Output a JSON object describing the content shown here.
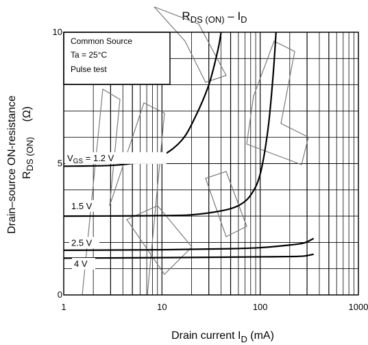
{
  "chart_data": {
    "type": "line",
    "title": {
      "main": "R",
      "main_sub": "DS (ON)",
      "sep": " – I",
      "sep_sub": "D"
    },
    "xlabel": {
      "pre": "Drain current   I",
      "sub": "D",
      "post": "   (mA)"
    },
    "ylabel": {
      "line1": "Drain–source ON-resistance",
      "line2_main": "R",
      "line2_sub": "DS (ON)",
      "line2_unit": "(Ω)"
    },
    "x_scale": "log",
    "xlim": [
      1,
      1000
    ],
    "ylim": [
      0,
      10
    ],
    "x_ticks": [
      {
        "value": 1,
        "label": "1"
      },
      {
        "value": 10,
        "label": "10"
      },
      {
        "value": 100,
        "label": "100"
      },
      {
        "value": 1000,
        "label": "1000"
      }
    ],
    "y_ticks": [
      {
        "value": 0,
        "label": "0"
      },
      {
        "value": 5,
        "label": "5"
      },
      {
        "value": 10,
        "label": "10"
      }
    ],
    "grid": true,
    "conditions": [
      "Common Source",
      "Ta = 25°C",
      "Pulse test"
    ],
    "series": [
      {
        "label_main": "V",
        "label_sub": "GS",
        "label_post": " = 1.2 V",
        "points": [
          [
            1,
            4.9
          ],
          [
            3,
            4.93
          ],
          [
            6,
            5.05
          ],
          [
            10,
            5.3
          ],
          [
            16,
            5.9
          ],
          [
            22,
            6.8
          ],
          [
            30,
            8.0
          ],
          [
            37,
            9.3
          ],
          [
            40,
            10.0
          ]
        ]
      },
      {
        "label_main": "",
        "label_sub": "",
        "label_post": "1.5 V",
        "points": [
          [
            1,
            3.0
          ],
          [
            5,
            3.01
          ],
          [
            10,
            3.02
          ],
          [
            20,
            3.05
          ],
          [
            40,
            3.2
          ],
          [
            60,
            3.4
          ],
          [
            80,
            3.8
          ],
          [
            100,
            4.6
          ],
          [
            120,
            6.3
          ],
          [
            135,
            8.3
          ],
          [
            145,
            10.0
          ]
        ]
      },
      {
        "label_main": "",
        "label_sub": "",
        "label_post": "2.5 V",
        "points": [
          [
            1,
            1.7
          ],
          [
            10,
            1.72
          ],
          [
            50,
            1.76
          ],
          [
            100,
            1.8
          ],
          [
            200,
            1.9
          ],
          [
            280,
            1.98
          ],
          [
            350,
            2.15
          ]
        ]
      },
      {
        "label_main": "",
        "label_sub": "",
        "label_post": "4 V",
        "points": [
          [
            1,
            1.4
          ],
          [
            10,
            1.42
          ],
          [
            50,
            1.44
          ],
          [
            100,
            1.45
          ],
          [
            200,
            1.46
          ],
          [
            280,
            1.48
          ],
          [
            350,
            1.55
          ]
        ]
      }
    ]
  }
}
